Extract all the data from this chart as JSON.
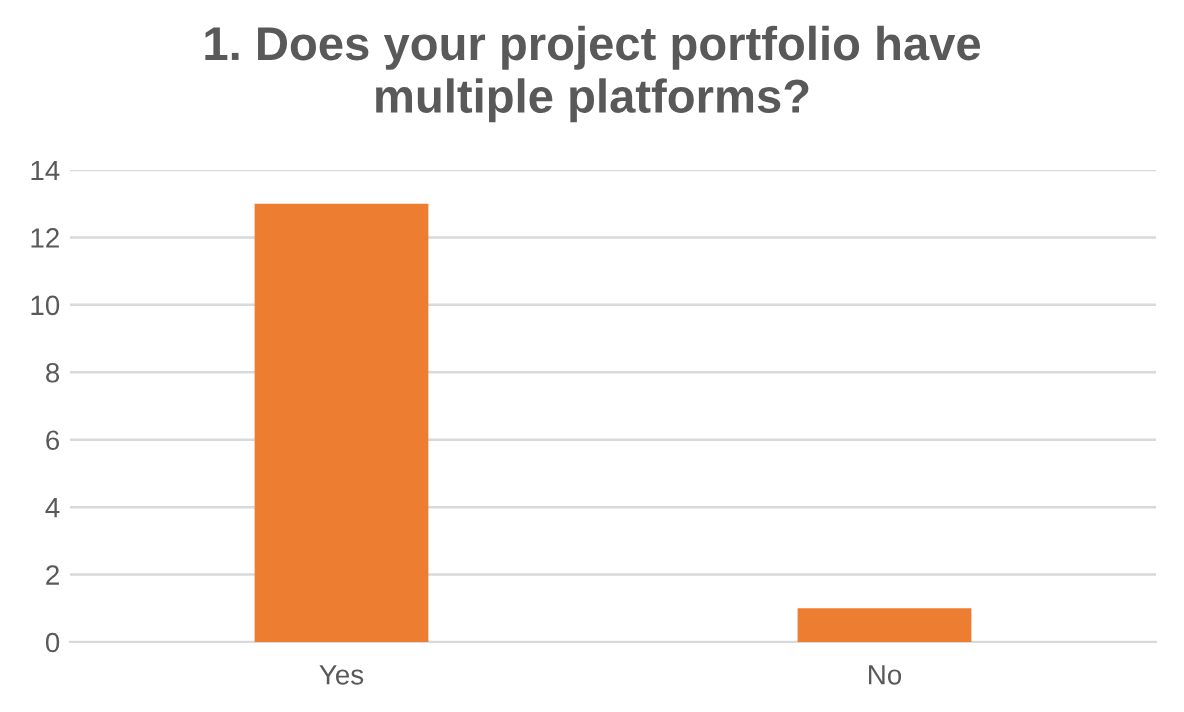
{
  "chart_data": {
    "type": "bar",
    "title": "1. Does your project portfolio have\nmultiple platforms?",
    "categories": [
      "Yes",
      "No"
    ],
    "values": [
      13,
      1
    ],
    "color": "#ed7d31",
    "ylim": [
      0,
      14
    ],
    "yticks": [
      0,
      2,
      4,
      6,
      8,
      10,
      12,
      14
    ],
    "grid": "y"
  }
}
